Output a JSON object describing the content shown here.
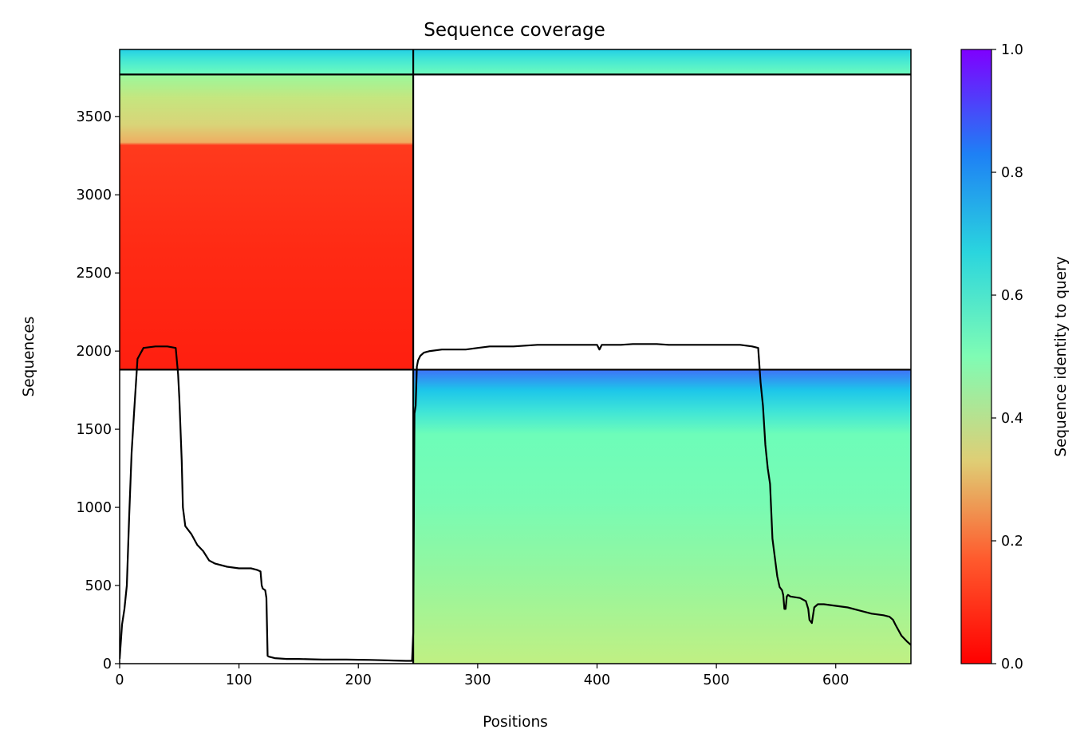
{
  "chart_data": {
    "type": "heatmap",
    "title": "Sequence coverage",
    "xlabel": "Positions",
    "ylabel": "Sequences",
    "xlim": [
      0,
      663
    ],
    "ylim": [
      0,
      3930
    ],
    "x_ticks": [
      0,
      100,
      200,
      300,
      400,
      500,
      600
    ],
    "y_ticks": [
      0,
      500,
      1000,
      1500,
      2000,
      2500,
      3000,
      3500
    ],
    "colorbar": {
      "label": "Sequence identity to query",
      "colormap": "rainbow_r",
      "range": [
        0,
        1
      ],
      "ticks": [
        0.0,
        0.2,
        0.4,
        0.6,
        0.8,
        1.0
      ],
      "tick_labels": [
        "0.0",
        "0.2",
        "0.4",
        "0.6",
        "0.8",
        "1.0"
      ]
    },
    "chain_boundaries": {
      "x": [
        246
      ],
      "y": [
        1881,
        3770
      ]
    },
    "coverage_blocks": [
      {
        "name": "chain-b-msa",
        "x_range": [
          246,
          663
        ],
        "y_range": [
          0,
          1881
        ]
      },
      {
        "name": "chain-a-msa",
        "x_range": [
          0,
          246
        ],
        "y_range": [
          1881,
          3770
        ]
      },
      {
        "name": "paired-msa",
        "x_range": [
          0,
          663
        ],
        "y_range": [
          3770,
          3930
        ]
      }
    ],
    "coverage_line": {
      "color": "#000000",
      "x": [
        0,
        2,
        4,
        6,
        8,
        10,
        12,
        15,
        20,
        30,
        40,
        47,
        49,
        50,
        51,
        52,
        53,
        55,
        60,
        65,
        70,
        75,
        80,
        90,
        100,
        110,
        115,
        118,
        119,
        120,
        122,
        123,
        124,
        125,
        130,
        140,
        150,
        160,
        170,
        180,
        190,
        200,
        210,
        220,
        230,
        240,
        245,
        246,
        247,
        248,
        249,
        250,
        252,
        255,
        260,
        270,
        280,
        290,
        300,
        310,
        320,
        330,
        340,
        350,
        360,
        370,
        380,
        390,
        400,
        402,
        404,
        410,
        420,
        430,
        440,
        450,
        460,
        470,
        480,
        490,
        500,
        510,
        520,
        530,
        535,
        537,
        539,
        541,
        543,
        545,
        547,
        549,
        551,
        553,
        555,
        556,
        557,
        558,
        559,
        560,
        562,
        570,
        575,
        577,
        578,
        580,
        582,
        585,
        590,
        600,
        610,
        620,
        630,
        640,
        645,
        648,
        650,
        655,
        660,
        663
      ],
      "y": [
        30,
        250,
        350,
        500,
        950,
        1350,
        1600,
        1950,
        2020,
        2030,
        2030,
        2020,
        1850,
        1700,
        1500,
        1300,
        1000,
        880,
        830,
        760,
        720,
        660,
        640,
        620,
        610,
        610,
        600,
        590,
        500,
        480,
        470,
        420,
        50,
        45,
        35,
        30,
        30,
        28,
        26,
        26,
        26,
        25,
        24,
        22,
        20,
        18,
        18,
        200,
        1600,
        1650,
        1900,
        1940,
        1970,
        1990,
        2000,
        2010,
        2010,
        2010,
        2020,
        2030,
        2030,
        2030,
        2035,
        2040,
        2040,
        2040,
        2040,
        2040,
        2040,
        2010,
        2040,
        2040,
        2040,
        2045,
        2045,
        2045,
        2040,
        2040,
        2040,
        2040,
        2040,
        2040,
        2040,
        2030,
        2020,
        1800,
        1650,
        1400,
        1250,
        1150,
        800,
        680,
        560,
        490,
        470,
        440,
        350,
        350,
        430,
        440,
        430,
        420,
        400,
        350,
        280,
        260,
        360,
        380,
        380,
        370,
        360,
        340,
        320,
        310,
        300,
        280,
        250,
        180,
        140,
        120
      ]
    }
  }
}
